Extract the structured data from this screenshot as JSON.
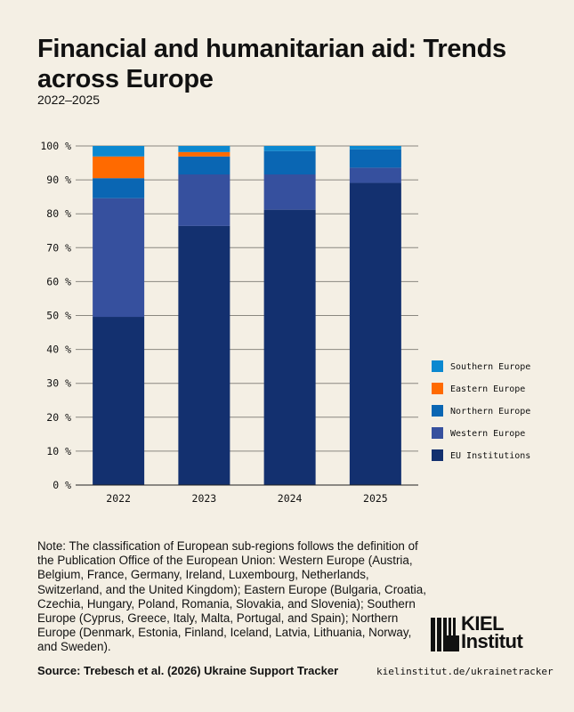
{
  "title": "Financial and humanitarian aid: Trends across Europe",
  "subtitle": "2022–2025",
  "chart_data": {
    "type": "bar",
    "stacked": true,
    "categories": [
      "2022",
      "2023",
      "2024",
      "2025"
    ],
    "ylim": [
      0,
      100
    ],
    "yticks": [
      "0 %",
      "10 %",
      "20 %",
      "30 %",
      "40 %",
      "50 %",
      "60 %",
      "70 %",
      "80 %",
      "90 %",
      "100 %"
    ],
    "grid": true,
    "legend_position": "right",
    "series": [
      {
        "name": "EU Institutions",
        "color": "#13306f",
        "values": [
          49.6,
          76.4,
          81.2,
          89.1
        ]
      },
      {
        "name": "Western Europe",
        "color": "#36509e",
        "values": [
          35.0,
          15.2,
          10.4,
          4.5
        ]
      },
      {
        "name": "Northern Europe",
        "color": "#0a66b3",
        "values": [
          5.9,
          5.3,
          6.9,
          5.4
        ]
      },
      {
        "name": "Eastern Europe",
        "color": "#ff6a00",
        "values": [
          6.4,
          1.3,
          0,
          0
        ]
      },
      {
        "name": "Southern Europe",
        "color": "#0b88d0",
        "values": [
          3.1,
          1.8,
          1.5,
          1.0
        ]
      }
    ]
  },
  "note": "Note: The classification of European sub-regions follows the definition of the Publication Office of the European Union: Western Europe (Austria, Belgium, France, Germany, Ireland, Luxembourg, Netherlands, Switzerland, and the United Kingdom); Eastern Europe (Bulgaria, Croatia, Czechia, Hungary, Poland, Romania, Slovakia, and Slovenia); Southern Europe (Cyprus, Greece, Italy, Malta, Portugal, and Spain); Northern Europe (Denmark, Estonia, Finland, Iceland, Latvia, Lithuania, Norway, and Sweden).",
  "source": "Source: Trebesch et al. (2026) Ukraine Support Tracker",
  "url": "kielinstitut.de/ukrainetracker",
  "logo": {
    "line1": "KIEL",
    "line2": "Institut"
  }
}
